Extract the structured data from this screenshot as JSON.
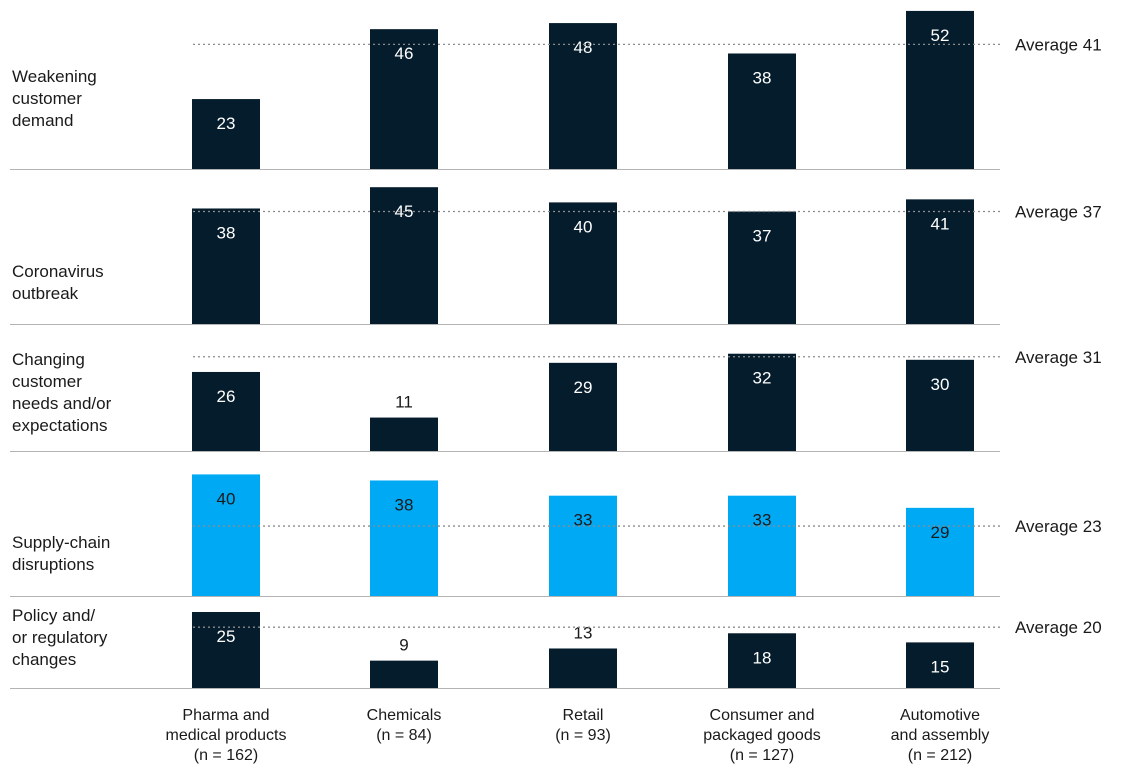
{
  "chart_data": {
    "type": "bar",
    "categories": [
      {
        "lines": [
          "Pharma and",
          "medical products",
          "(n = 162)"
        ]
      },
      {
        "lines": [
          "Chemicals",
          "(n = 84)"
        ]
      },
      {
        "lines": [
          "Retail",
          "(n = 93)"
        ]
      },
      {
        "lines": [
          "Consumer and",
          "packaged goods",
          "(n = 127)"
        ]
      },
      {
        "lines": [
          "Automotive",
          "and assembly",
          "(n = 212)"
        ]
      }
    ],
    "rows": [
      {
        "label_lines": [
          "Weakening",
          "customer",
          "demand"
        ],
        "values": [
          23,
          46,
          48,
          38,
          52
        ],
        "average": 41,
        "average_label": "Average 41",
        "highlight": false
      },
      {
        "label_lines": [
          "Coronavirus",
          "outbreak"
        ],
        "values": [
          38,
          45,
          40,
          37,
          41
        ],
        "average": 37,
        "average_label": "Average 37",
        "highlight": false
      },
      {
        "label_lines": [
          "Changing",
          "customer",
          "needs and/or",
          "expectations"
        ],
        "values": [
          26,
          11,
          29,
          32,
          30
        ],
        "average": 31,
        "average_label": "Average 31",
        "highlight": false
      },
      {
        "label_lines": [
          "Supply-chain",
          "disruptions"
        ],
        "values": [
          40,
          38,
          33,
          33,
          29
        ],
        "average": 23,
        "average_label": "Average 23",
        "highlight": true
      },
      {
        "label_lines": [
          "Policy and/",
          "or regulatory",
          "changes"
        ],
        "values": [
          25,
          9,
          13,
          18,
          15
        ],
        "average": 20,
        "average_label": "Average 20",
        "highlight": false
      }
    ],
    "colors": {
      "dark": "#051c2c",
      "highlight": "#00a9f4",
      "gridline": "#b3b3b3",
      "dotted": "#8c8c8c"
    },
    "grid": false,
    "legend": "none"
  }
}
